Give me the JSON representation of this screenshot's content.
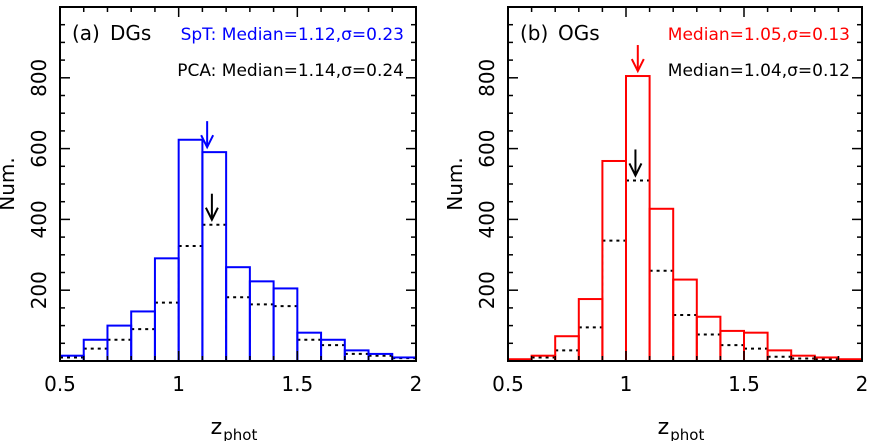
{
  "chart_data": [
    {
      "type": "bar",
      "panel_label": "(a)",
      "title": "DGs",
      "xlabel": "z",
      "xlabel_sub": "phot",
      "ylabel": "Num.",
      "xlim": [
        0.5,
        2.0
      ],
      "ylim": [
        0,
        1000
      ],
      "xticks": [
        0.5,
        1.0,
        1.5,
        2.0
      ],
      "xtick_labels": [
        "0.5",
        "1",
        "1.5",
        "2"
      ],
      "yticks": [
        200,
        400,
        600,
        800
      ],
      "ytick_labels": [
        "200",
        "400",
        "600",
        "800"
      ],
      "bin_edges": [
        0.5,
        0.6,
        0.7,
        0.8,
        0.9,
        1.0,
        1.1,
        1.2,
        1.3,
        1.4,
        1.5,
        1.6,
        1.7,
        1.8,
        1.9,
        2.0
      ],
      "series": [
        {
          "name": "SpT",
          "style": "solid",
          "color": "#0000ff",
          "values": [
            15,
            60,
            100,
            140,
            290,
            625,
            590,
            265,
            225,
            205,
            80,
            60,
            30,
            20,
            10
          ],
          "median": 1.12,
          "sigma": 0.23,
          "annotation": "SpT:  Median=1.12,σ=0.23"
        },
        {
          "name": "PCA",
          "style": "dotted",
          "color": "#000000",
          "values": [
            10,
            35,
            60,
            90,
            165,
            325,
            385,
            180,
            160,
            155,
            60,
            45,
            20,
            15,
            8
          ],
          "median": 1.14,
          "sigma": 0.24,
          "annotation": "PCA:  Median=1.14,σ=0.24"
        }
      ]
    },
    {
      "type": "bar",
      "panel_label": "(b)",
      "title": "OGs",
      "xlabel": "z",
      "xlabel_sub": "phot",
      "ylabel": "Num.",
      "xlim": [
        0.5,
        2.0
      ],
      "ylim": [
        0,
        1000
      ],
      "xticks": [
        0.5,
        1.0,
        1.5,
        2.0
      ],
      "xtick_labels": [
        "0.5",
        "1",
        "1.5",
        "2"
      ],
      "yticks": [
        200,
        400,
        600,
        800
      ],
      "ytick_labels": [
        "200",
        "400",
        "600",
        "800"
      ],
      "bin_edges": [
        0.5,
        0.6,
        0.7,
        0.8,
        0.9,
        1.0,
        1.1,
        1.2,
        1.3,
        1.4,
        1.5,
        1.6,
        1.7,
        1.8,
        1.9,
        2.0
      ],
      "series": [
        {
          "name": "SpT",
          "style": "solid",
          "color": "#ff0000",
          "values": [
            5,
            15,
            70,
            175,
            565,
            805,
            430,
            230,
            125,
            85,
            80,
            30,
            15,
            10,
            5
          ],
          "median": 1.05,
          "sigma": 0.13,
          "annotation": "Median=1.05,σ=0.13"
        },
        {
          "name": "PCA",
          "style": "dotted",
          "color": "#000000",
          "values": [
            3,
            10,
            30,
            95,
            340,
            510,
            255,
            130,
            75,
            45,
            35,
            12,
            7,
            5,
            3
          ],
          "median": 1.04,
          "sigma": 0.12,
          "annotation": "Median=1.04,σ=0.12"
        }
      ]
    }
  ]
}
